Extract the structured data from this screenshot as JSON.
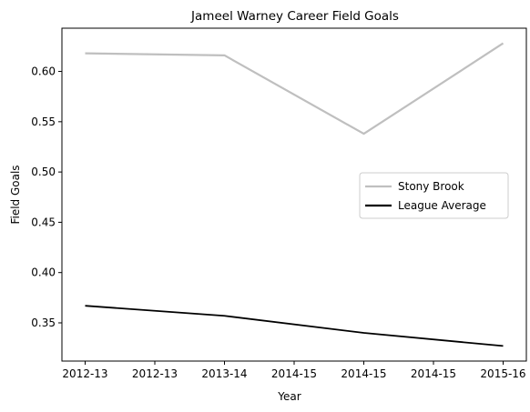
{
  "chart_data": {
    "type": "line",
    "title": "Jameel Warney Career Field Goals",
    "xlabel": "Year",
    "ylabel": "Field Goals",
    "x_ticks": [
      "2012-13",
      "2012-13",
      "2013-14",
      "2014-15",
      "2014-15",
      "2014-15",
      "2015-16"
    ],
    "x_points": [
      "2012-13",
      "2013-14",
      "2014-15",
      "2015-16"
    ],
    "ylim": [
      0.312,
      0.643
    ],
    "y_ticks": [
      0.35,
      0.4,
      0.45,
      0.5,
      0.55,
      0.6
    ],
    "y_tick_labels": [
      "0.35",
      "0.40",
      "0.45",
      "0.50",
      "0.55",
      "0.60"
    ],
    "grid": false,
    "legend_position": "center-right",
    "series": [
      {
        "name": "Stony Brook",
        "color": "#bfbfbf",
        "values": [
          0.618,
          0.616,
          0.538,
          0.628
        ]
      },
      {
        "name": "League Average",
        "color": "#000000",
        "values": [
          0.367,
          0.357,
          0.34,
          0.327
        ]
      }
    ]
  }
}
